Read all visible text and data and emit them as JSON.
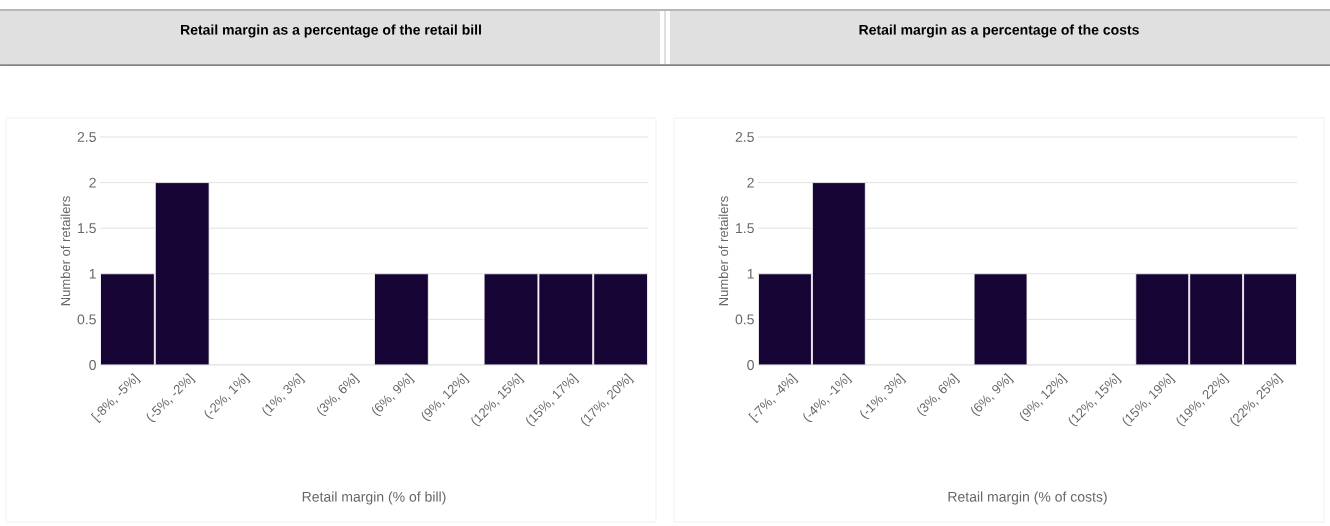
{
  "chart_data": [
    {
      "type": "bar",
      "title": "Retail margin as a percentage of the retail bill",
      "xlabel": "Retail margin (% of bill)",
      "ylabel": "Number of retailers",
      "categories": [
        "[-8%, -5%]",
        "(-5%, -2%]",
        "(-2%, 1%]",
        "(1%, 3%]",
        "(3%, 6%]",
        "(6%, 9%]",
        "(9%, 12%]",
        "(12%, 15%]",
        "(15%, 17%]",
        "(17%, 20%]"
      ],
      "values": [
        1,
        2,
        0,
        0,
        0,
        1,
        0,
        1,
        1,
        1
      ],
      "color": "#160434",
      "ylim": [
        0,
        2.5
      ],
      "yticks": [
        0,
        0.5,
        1,
        1.5,
        2,
        2.5
      ],
      "grid": "y"
    },
    {
      "type": "bar",
      "title": "Retail margin as a percentage of the costs",
      "xlabel": "Retail margin (% of costs)",
      "ylabel": "Number of retailers",
      "categories": [
        "[-7%, -4%]",
        "(-4%, -1%]",
        "(-1%, 3%]",
        "(3%, 6%]",
        "(6%, 9%]",
        "(9%, 12%]",
        "(12%, 15%]",
        "(15%, 19%]",
        "(19%, 22%]",
        "(22%, 25%]"
      ],
      "values": [
        1,
        2,
        0,
        0,
        1,
        0,
        0,
        1,
        1,
        1
      ],
      "color": "#160434",
      "ylim": [
        0,
        2.5
      ],
      "yticks": [
        0,
        0.5,
        1,
        1.5,
        2,
        2.5
      ],
      "grid": "y"
    }
  ]
}
